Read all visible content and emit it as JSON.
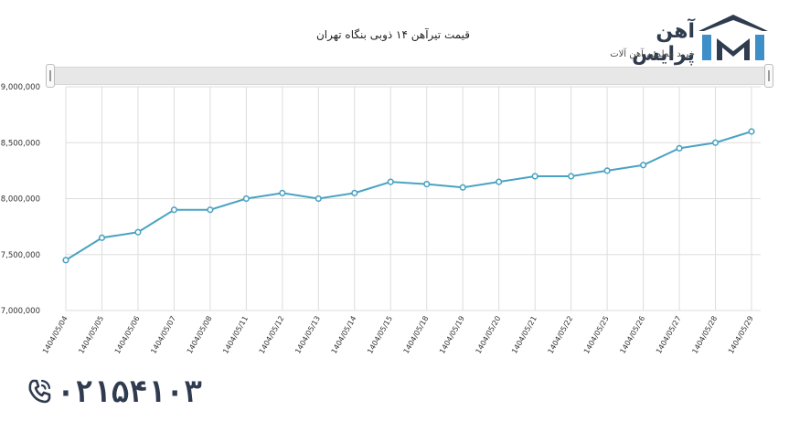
{
  "header": {
    "title": "قیمت تیرآهن ۱۴ ذوبی بنگاه تهران"
  },
  "brand": {
    "name": "آهن پرایس",
    "tagline": "خرید مطمئن آهن آلات",
    "icon": "building-roof-icon"
  },
  "contact": {
    "phone": "۰۲۱۵۴۱۰۳",
    "icon": "phone-icon"
  },
  "colors": {
    "line": "#4aa3c2",
    "grid": "#dddddd",
    "brand": "#2f3b4f",
    "brand_accent": "#3e8fc7"
  },
  "chart_data": {
    "type": "line",
    "title": "قیمت تیرآهن ۱۴ ذوبی بنگاه تهران",
    "xlabel": "",
    "ylabel": "",
    "x": [
      "1404/05/04",
      "1404/05/05",
      "1404/05/06",
      "1404/05/07",
      "1404/05/08",
      "1404/05/11",
      "1404/05/12",
      "1404/05/13",
      "1404/05/14",
      "1404/05/15",
      "1404/05/18",
      "1404/05/19",
      "1404/05/20",
      "1404/05/21",
      "1404/05/22",
      "1404/05/25",
      "1404/05/26",
      "1404/05/27",
      "1404/05/28",
      "1404/05/29"
    ],
    "series": [
      {
        "values": [
          7450000,
          7650000,
          7700000,
          7900000,
          7900000,
          8000000,
          8050000,
          8000000,
          8050000,
          8150000,
          8130000,
          8100000,
          8150000,
          8200000,
          8200000,
          8250000,
          8300000,
          8450000,
          8500000,
          8600000
        ]
      }
    ],
    "yticks": [
      "7,000,000",
      "7,500,000",
      "8,000,000",
      "8,500,000",
      "9,000,000"
    ],
    "ylim": [
      7000000,
      9000000
    ],
    "grid": true,
    "legend": "none"
  }
}
